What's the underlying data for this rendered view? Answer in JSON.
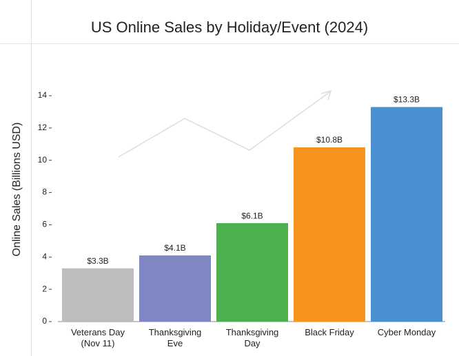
{
  "chart_data": {
    "type": "bar",
    "title": "US Online Sales by Holiday/Event (2024)",
    "y_label": "Online Sales (Billions USD)",
    "categories": [
      "Veterans Day (Nov 11)",
      "Thanksgiving Eve",
      "Thanksgiving Day",
      "Black Friday",
      "Cyber Monday"
    ],
    "values": [
      3.3,
      4.1,
      6.1,
      10.8,
      13.3
    ],
    "value_labels": [
      "$3.3B",
      "$4.1B",
      "$6.1B",
      "$10.8B",
      "$13.3B"
    ],
    "colors": [
      "#bdbdbd",
      "#7f86c4",
      "#4cb050",
      "#f7941d",
      "#4a8fcf"
    ],
    "ylim": [
      0,
      14
    ],
    "yticks": [
      0,
      2,
      4,
      6,
      8,
      10,
      12,
      14
    ],
    "grid": false
  }
}
